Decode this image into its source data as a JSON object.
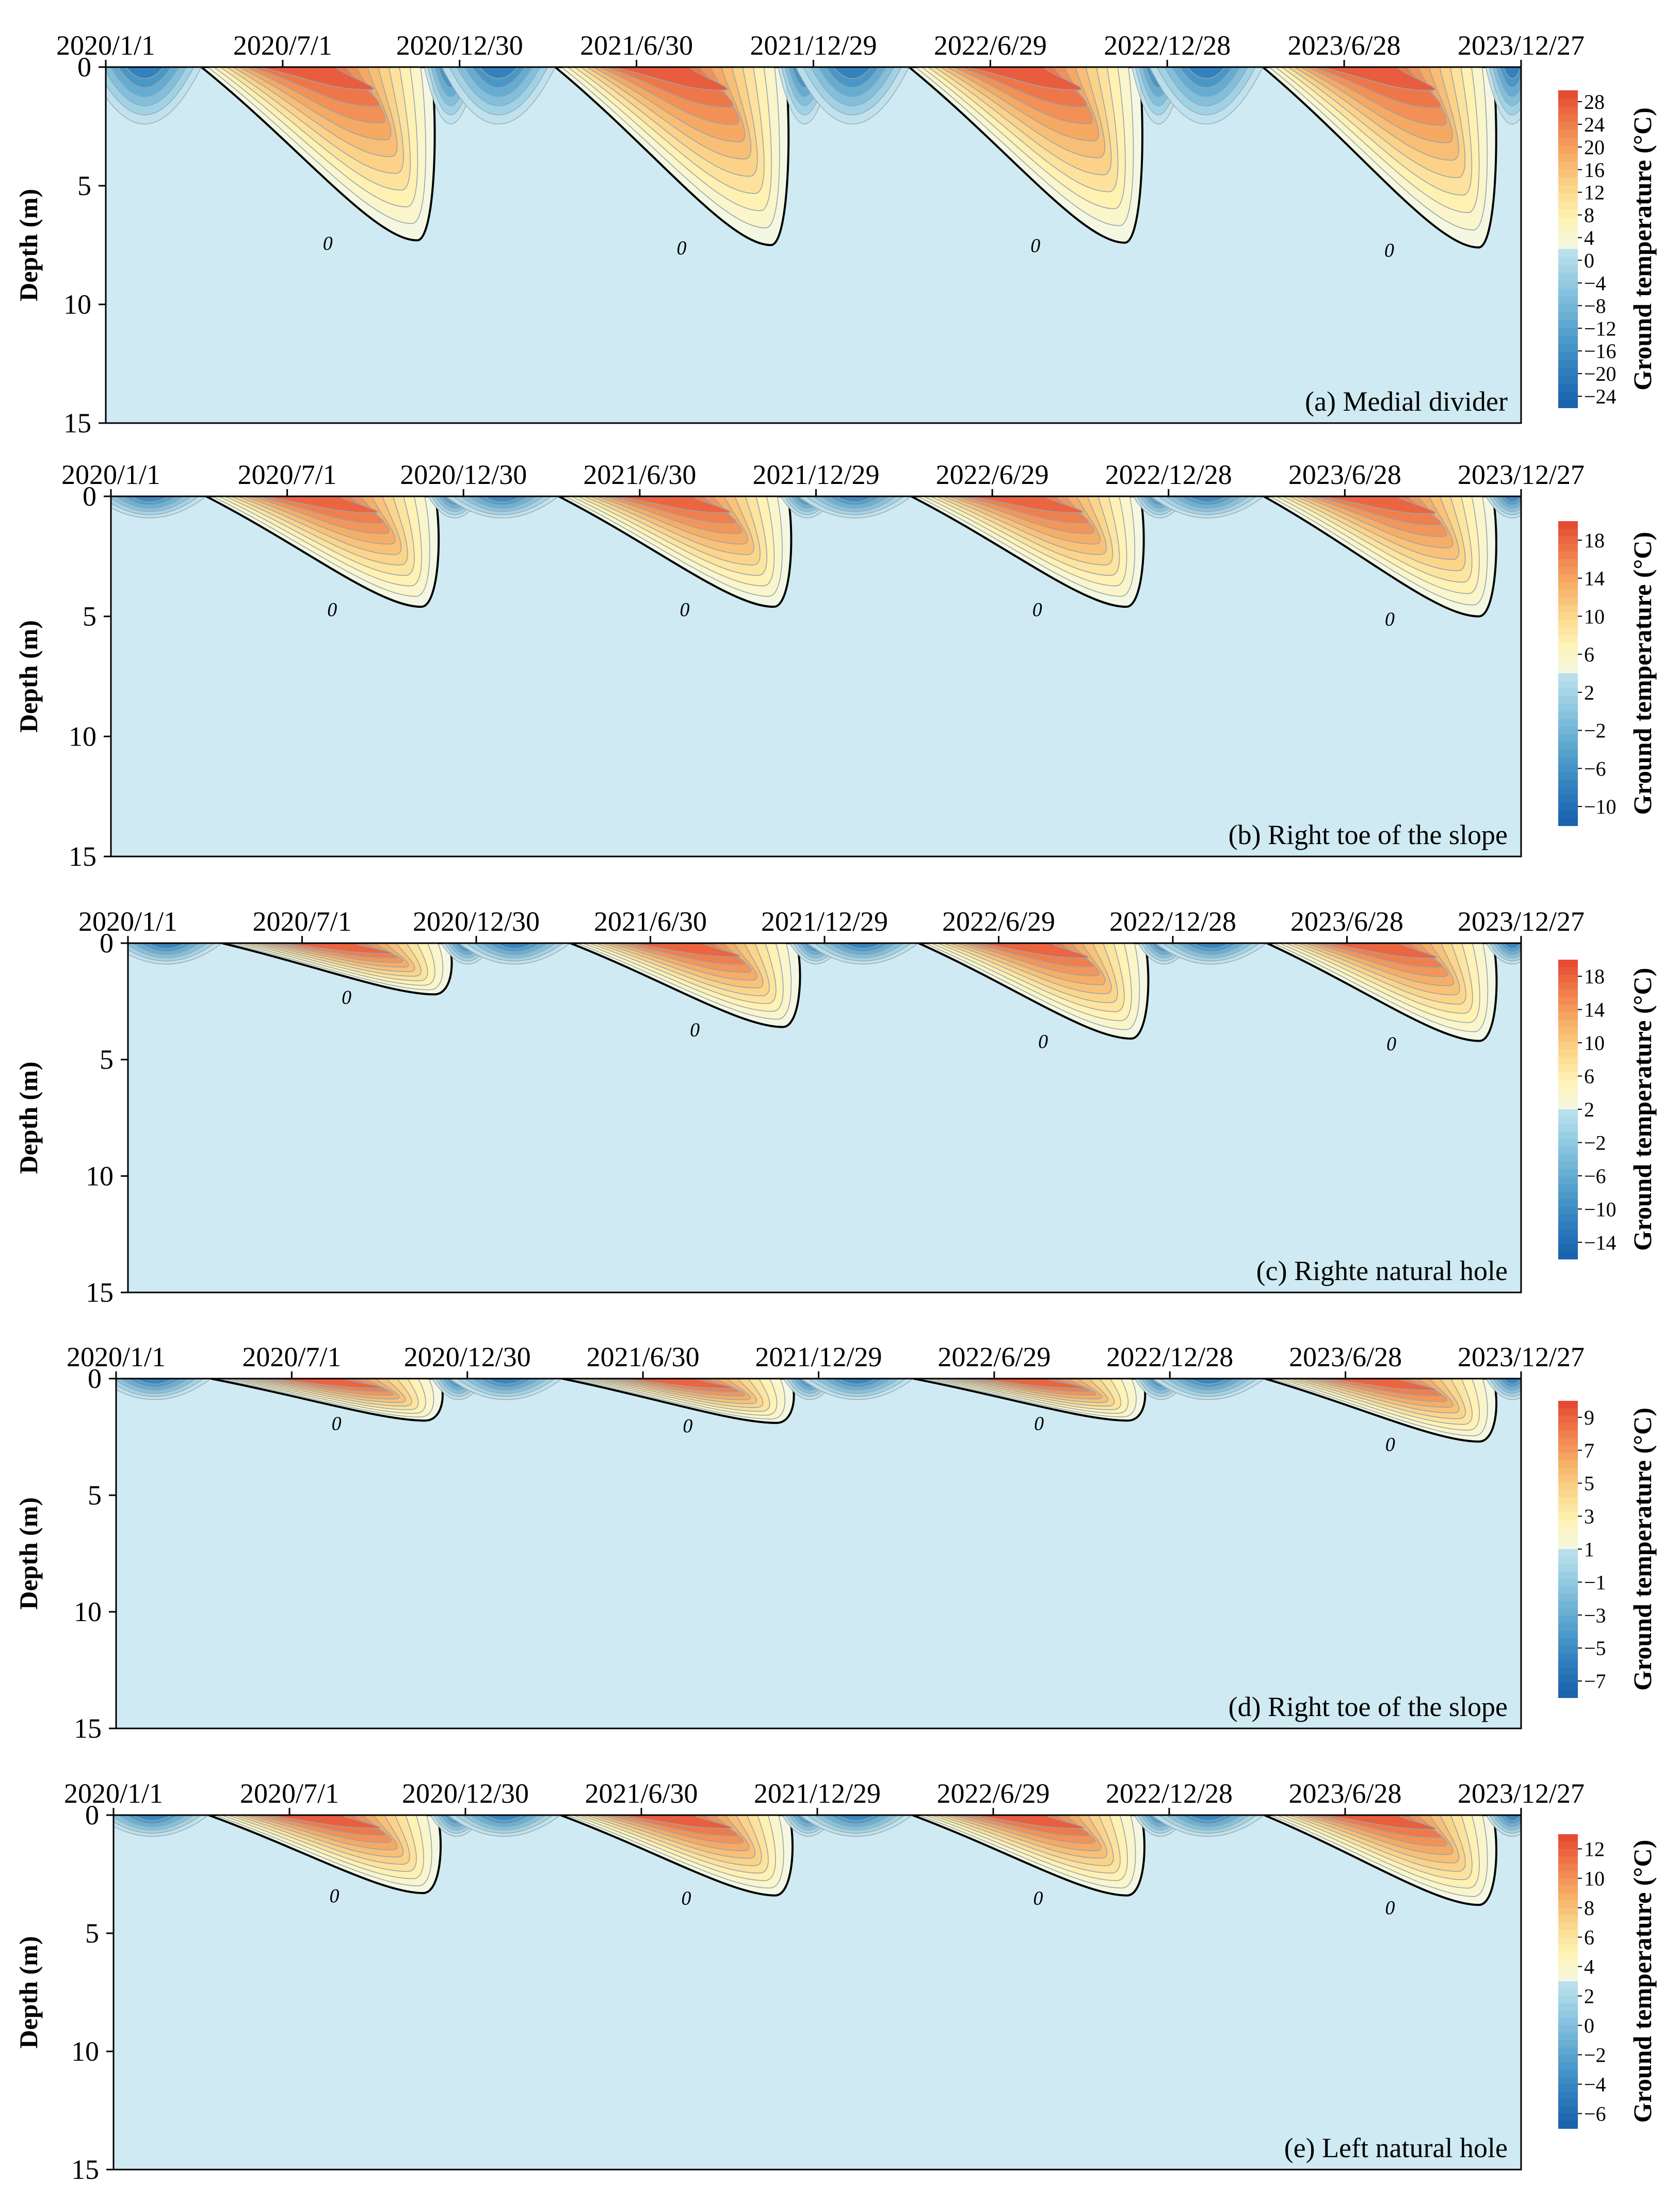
{
  "figure": {
    "date_ticks": [
      "2020/1/1",
      "2020/7/1",
      "2020/12/30",
      "2021/6/30",
      "2021/12/29",
      "2022/6/29",
      "2022/12/28",
      "2023/6/28",
      "2023/12/27"
    ],
    "depth_ticks": [
      "0",
      "5",
      "10",
      "15"
    ],
    "y_axis_label": "Depth (m)",
    "colorbar_label": "Ground temperature (°C)",
    "contour_zero_label": "0",
    "colors": {
      "background": "#ffffff",
      "frozen_fill": "#cfeaf2",
      "zero_contour": "#000000",
      "minor_contour": "#9aa4ab",
      "warm": [
        "#f4f8e2",
        "#fff2b4",
        "#fbd58a",
        "#f6ae66",
        "#ef7f4c",
        "#e64b35"
      ],
      "cold": [
        "#bfe2ee",
        "#96cde2",
        "#6fb3d6",
        "#4b98c8",
        "#2e7cbc",
        "#1b63ad"
      ]
    }
  },
  "chart_data": [
    {
      "type": "heatmap",
      "title": "(a) Medial divider",
      "xlabel": "",
      "ylabel": "Depth (m)",
      "ylim": [
        0,
        15
      ],
      "x_start": "2020/1/1",
      "x_end": "2023/12/27",
      "colorbar": {
        "label": "Ground temperature (°C)",
        "ticks": [
          "28",
          "24",
          "20",
          "16",
          "12",
          "8",
          "4",
          "0",
          "−4",
          "−8",
          "−12",
          "−16",
          "−20",
          "−24"
        ],
        "range": [
          -26,
          30
        ]
      },
      "max_thaw_depth_m": [
        7.3,
        7.5,
        7.4,
        7.6
      ],
      "peak_surface_temp_c": 28,
      "min_surface_temp_c": -24
    },
    {
      "type": "heatmap",
      "title": "(b) Right toe of the slope",
      "xlabel": "",
      "ylabel": "Depth (m)",
      "ylim": [
        0,
        15
      ],
      "x_start": "2020/1/1",
      "x_end": "2023/12/27",
      "colorbar": {
        "label": "Ground temperature (°C)",
        "ticks": [
          "18",
          "14",
          "10",
          "6",
          "2",
          "−2",
          "−6",
          "−10"
        ],
        "range": [
          -12,
          20
        ]
      },
      "max_thaw_depth_m": [
        4.6,
        4.6,
        4.6,
        5.0
      ],
      "peak_surface_temp_c": 18,
      "min_surface_temp_c": -10
    },
    {
      "type": "heatmap",
      "title": "(c) Righte natural hole",
      "xlabel": "",
      "ylabel": "Depth (m)",
      "ylim": [
        0,
        15
      ],
      "x_start": "2020/1/1",
      "x_end": "2023/12/27",
      "colorbar": {
        "label": "Ground temperature (°C)",
        "ticks": [
          "18",
          "14",
          "10",
          "6",
          "2",
          "−2",
          "−6",
          "−10",
          "−14"
        ],
        "range": [
          -16,
          20
        ]
      },
      "max_thaw_depth_m": [
        2.2,
        3.6,
        4.1,
        4.2
      ],
      "peak_surface_temp_c": 18,
      "min_surface_temp_c": -14
    },
    {
      "type": "heatmap",
      "title": "(d) Right toe of the slope",
      "xlabel": "",
      "ylabel": "Depth (m)",
      "ylim": [
        0,
        15
      ],
      "x_start": "2020/1/1",
      "x_end": "2023/12/27",
      "colorbar": {
        "label": "Ground temperature (°C)",
        "ticks": [
          "9",
          "7",
          "5",
          "3",
          "1",
          "−1",
          "−3",
          "−5",
          "−7"
        ],
        "range": [
          -8,
          10
        ]
      },
      "max_thaw_depth_m": [
        1.8,
        1.9,
        1.8,
        2.7
      ],
      "peak_surface_temp_c": 9,
      "min_surface_temp_c": -7
    },
    {
      "type": "heatmap",
      "title": "(e) Left natural hole",
      "xlabel": "",
      "ylabel": "Depth (m)",
      "ylim": [
        0,
        15
      ],
      "x_start": "2020/1/1",
      "x_end": "2023/12/27",
      "colorbar": {
        "label": "Ground temperature (°C)",
        "ticks": [
          "12",
          "10",
          "8",
          "6",
          "4",
          "2",
          "0",
          "−2",
          "−4",
          "−6"
        ],
        "range": [
          -7,
          13
        ]
      },
      "max_thaw_depth_m": [
        3.3,
        3.4,
        3.4,
        3.8
      ],
      "peak_surface_temp_c": 12,
      "min_surface_temp_c": -6
    }
  ]
}
